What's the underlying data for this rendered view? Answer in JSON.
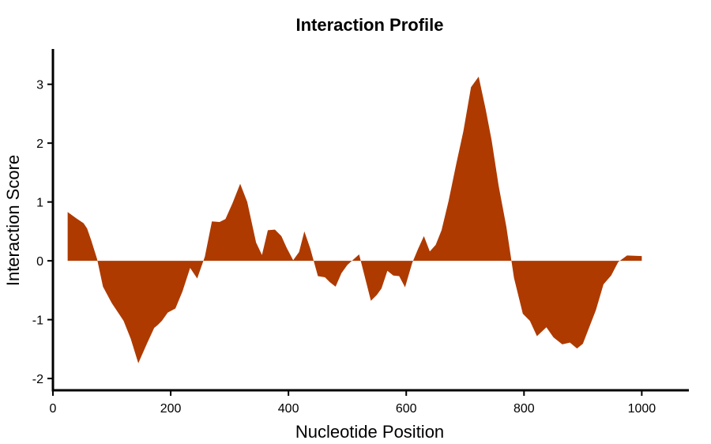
{
  "chart_data": {
    "type": "area",
    "title": "Interaction Profile",
    "xlabel": "Nucleotide Position",
    "ylabel": "Interaction Score",
    "xlim": [
      0,
      1080
    ],
    "ylim": [
      -2.2,
      3.6
    ],
    "xticks": [
      0,
      200,
      400,
      600,
      800,
      1000
    ],
    "yticks": [
      -2,
      -1,
      0,
      1,
      2,
      3
    ],
    "grid": false,
    "fill_color": "#AE3A00",
    "baseline": 0,
    "x": [
      25,
      40,
      52,
      58,
      65,
      75,
      85,
      100,
      112,
      120,
      132,
      145,
      160,
      172,
      178,
      185,
      195,
      208,
      220,
      233,
      245,
      258,
      270,
      283,
      293,
      305,
      318,
      330,
      345,
      355,
      365,
      377,
      388,
      397,
      408,
      418,
      427,
      437,
      450,
      462,
      470,
      480,
      490,
      500,
      510,
      520,
      540,
      550,
      558,
      568,
      578,
      588,
      598,
      610,
      620,
      630,
      640,
      650,
      660,
      672,
      685,
      697,
      710,
      723,
      735,
      745,
      757,
      770,
      783,
      798,
      810,
      822,
      838,
      850,
      865,
      878,
      890,
      900,
      910,
      922,
      935,
      948,
      960,
      975,
      1000
    ],
    "y": [
      0.83,
      0.72,
      0.64,
      0.55,
      0.35,
      0.03,
      -0.44,
      -0.72,
      -0.9,
      -1.02,
      -1.32,
      -1.74,
      -1.4,
      -1.14,
      -1.09,
      -1.02,
      -0.88,
      -0.81,
      -0.52,
      -0.12,
      -0.3,
      0.07,
      0.67,
      0.66,
      0.71,
      0.98,
      1.31,
      1.0,
      0.31,
      0.1,
      0.52,
      0.53,
      0.42,
      0.22,
      0.01,
      0.15,
      0.5,
      0.21,
      -0.26,
      -0.28,
      -0.36,
      -0.44,
      -0.21,
      -0.07,
      0.02,
      0.11,
      -0.68,
      -0.58,
      -0.47,
      -0.17,
      -0.25,
      -0.26,
      -0.45,
      -0.04,
      0.2,
      0.42,
      0.16,
      0.27,
      0.52,
      1.02,
      1.65,
      2.2,
      2.95,
      3.13,
      2.57,
      2.05,
      1.27,
      0.58,
      -0.29,
      -0.9,
      -1.02,
      -1.28,
      -1.13,
      -1.3,
      -1.42,
      -1.39,
      -1.49,
      -1.41,
      -1.15,
      -0.84,
      -0.4,
      -0.25,
      -0.02,
      0.09,
      0.08
    ]
  }
}
